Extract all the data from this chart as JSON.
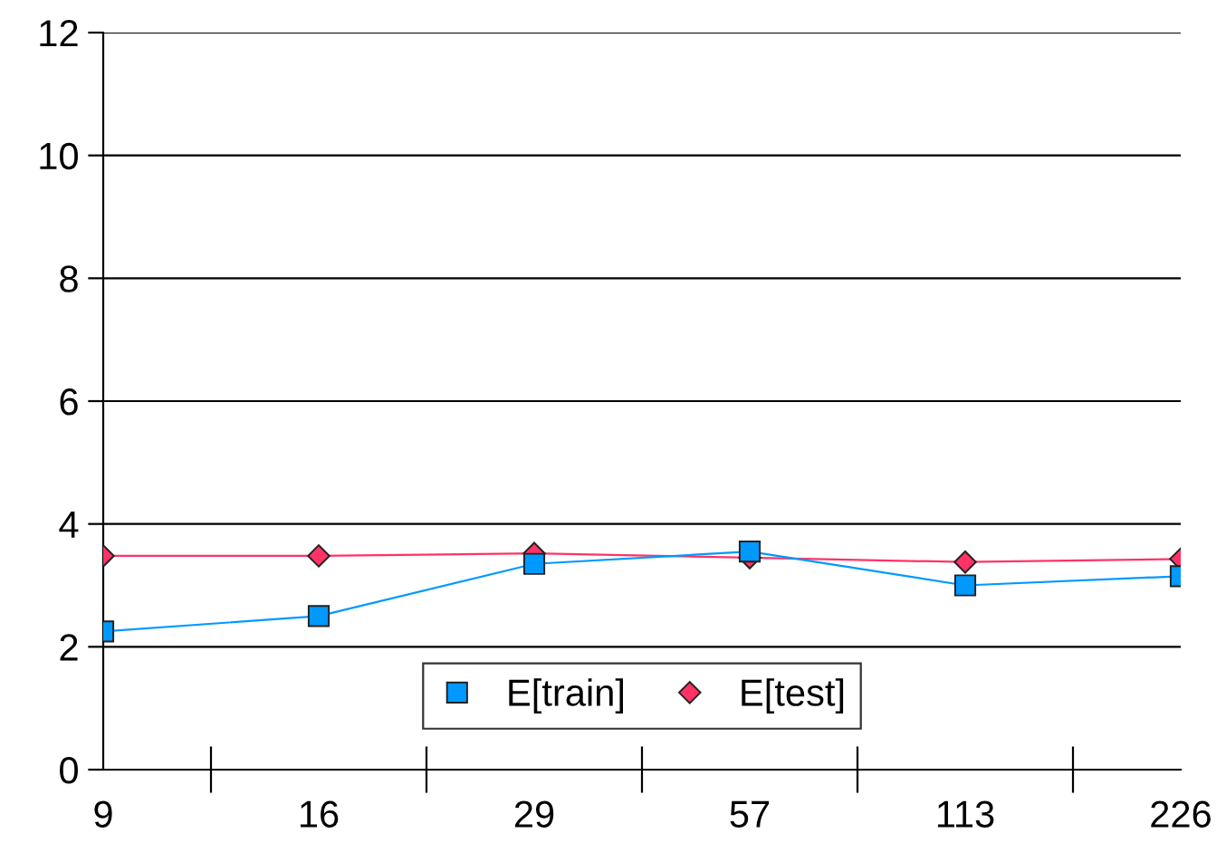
{
  "chart_data": {
    "type": "line",
    "categories": [
      "9",
      "16",
      "29",
      "57",
      "113",
      "226"
    ],
    "series": [
      {
        "name": "E[train]",
        "color": "#0099ff",
        "marker": "square",
        "values": [
          2.25,
          2.5,
          3.35,
          3.55,
          3.0,
          3.15
        ]
      },
      {
        "name": "E[test]",
        "color": "#ff3366",
        "marker": "diamond",
        "values": [
          3.48,
          3.48,
          3.52,
          3.45,
          3.38,
          3.43
        ]
      }
    ],
    "ylim": [
      0,
      12
    ],
    "yticks": [
      0,
      2,
      4,
      6,
      8,
      10,
      12
    ],
    "grid": "y",
    "legend": "bottom"
  }
}
